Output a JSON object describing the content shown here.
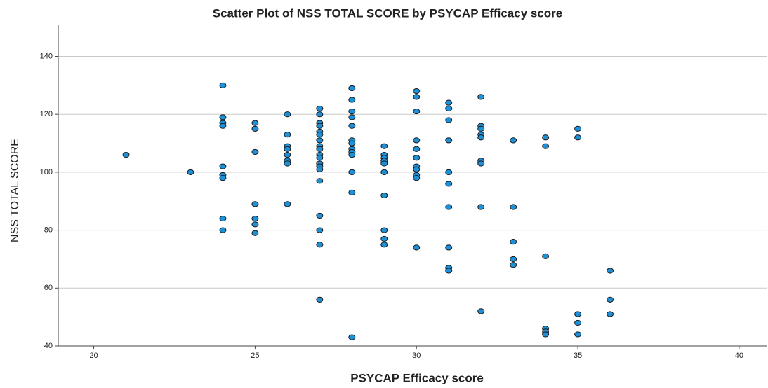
{
  "chart_data": {
    "type": "scatter",
    "title": "Scatter Plot of NSS TOTAL SCORE by PSYCAP Efficacy score",
    "x_label": "PSYCAP Efficacy score",
    "y_label": "NSS TOTAL SCORE",
    "x": [
      21,
      23,
      24,
      24,
      24,
      24,
      24,
      24,
      24,
      24,
      24,
      25,
      25,
      25,
      25,
      25,
      25,
      25,
      26,
      26,
      26,
      26,
      26,
      26,
      26,
      26,
      27,
      27,
      27,
      27,
      27,
      27,
      27,
      27,
      27,
      27,
      27,
      27,
      27,
      27,
      27,
      27,
      27,
      27,
      27,
      28,
      28,
      28,
      28,
      28,
      28,
      28,
      28,
      28,
      28,
      28,
      28,
      28,
      29,
      29,
      29,
      29,
      29,
      29,
      29,
      29,
      29,
      29,
      30,
      30,
      30,
      30,
      30,
      30,
      30,
      30,
      30,
      30,
      30,
      31,
      31,
      31,
      31,
      31,
      31,
      31,
      31,
      31,
      31,
      32,
      32,
      32,
      32,
      32,
      32,
      32,
      32,
      32,
      33,
      33,
      33,
      33,
      33,
      34,
      34,
      34,
      34,
      34,
      34,
      35,
      35,
      35,
      35,
      35,
      36,
      36,
      36
    ],
    "y": [
      106,
      100,
      130,
      119,
      117,
      116,
      102,
      99,
      98,
      84,
      80,
      117,
      115,
      107,
      89,
      84,
      82,
      79,
      120,
      113,
      109,
      108,
      106,
      104,
      103,
      89,
      122,
      120,
      117,
      116,
      114,
      113,
      111,
      109,
      108,
      106,
      105,
      103,
      102,
      101,
      97,
      85,
      80,
      75,
      56,
      129,
      125,
      121,
      119,
      116,
      111,
      110,
      108,
      107,
      106,
      100,
      93,
      43,
      109,
      106,
      105,
      104,
      103,
      100,
      92,
      80,
      77,
      75,
      128,
      126,
      121,
      111,
      108,
      105,
      102,
      101,
      99,
      98,
      74,
      124,
      122,
      118,
      111,
      100,
      96,
      88,
      74,
      67,
      66,
      126,
      116,
      115,
      113,
      112,
      104,
      103,
      88,
      52,
      111,
      88,
      76,
      70,
      68,
      112,
      109,
      71,
      46,
      45,
      44,
      115,
      112,
      51,
      48,
      44,
      66,
      56,
      51
    ],
    "color": "#1e90d8",
    "edge_color": "#1a1a1a",
    "xlim": [
      18.9,
      40.85
    ],
    "xticks": [
      20,
      25,
      30,
      35,
      40
    ],
    "ylim": [
      40,
      151
    ],
    "yticks": [
      40,
      60,
      80,
      100,
      120,
      140
    ],
    "grid": true
  }
}
